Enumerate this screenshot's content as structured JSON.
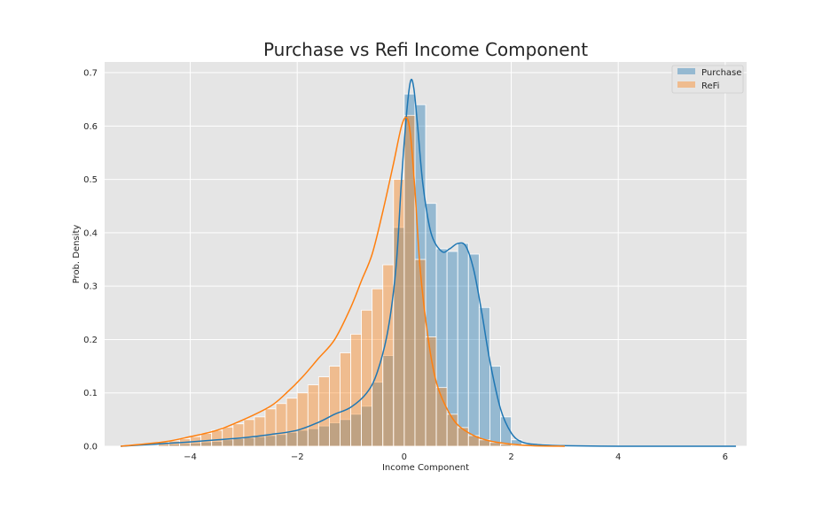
{
  "chart_data": {
    "type": "histogram",
    "title": "Purchase vs Refi Income Component",
    "xlabel": "Income Component",
    "ylabel": "Prob. Density",
    "xlim": [
      -5.6,
      6.4
    ],
    "ylim": [
      0,
      0.72
    ],
    "xticks": [
      -4,
      -2,
      0,
      2,
      4,
      6
    ],
    "xtick_labels": [
      "−4",
      "−2",
      "0",
      "2",
      "4",
      "6"
    ],
    "yticks": [
      0.0,
      0.1,
      0.2,
      0.3,
      0.4,
      0.5,
      0.6,
      0.7
    ],
    "ytick_labels": [
      "0.0",
      "0.1",
      "0.2",
      "0.3",
      "0.4",
      "0.5",
      "0.6",
      "0.7"
    ],
    "grid": true,
    "legend_position": "top-right",
    "series": [
      {
        "name": "Purchase",
        "color": "#1f77b4",
        "hist_bins": [
          [
            -4.5,
            0.003
          ],
          [
            -4.3,
            0.004
          ],
          [
            -4.1,
            0.005
          ],
          [
            -3.9,
            0.006
          ],
          [
            -3.7,
            0.008
          ],
          [
            -3.5,
            0.009
          ],
          [
            -3.3,
            0.012
          ],
          [
            -3.1,
            0.014
          ],
          [
            -2.9,
            0.016
          ],
          [
            -2.7,
            0.018
          ],
          [
            -2.5,
            0.02
          ],
          [
            -2.3,
            0.022
          ],
          [
            -2.1,
            0.026
          ],
          [
            -1.9,
            0.03
          ],
          [
            -1.7,
            0.033
          ],
          [
            -1.5,
            0.038
          ],
          [
            -1.3,
            0.044
          ],
          [
            -1.1,
            0.05
          ],
          [
            -0.9,
            0.06
          ],
          [
            -0.7,
            0.075
          ],
          [
            -0.5,
            0.12
          ],
          [
            -0.3,
            0.17
          ],
          [
            -0.1,
            0.41
          ],
          [
            0.1,
            0.66
          ],
          [
            0.3,
            0.64
          ],
          [
            0.5,
            0.455
          ],
          [
            0.7,
            0.37
          ],
          [
            0.9,
            0.365
          ],
          [
            1.1,
            0.38
          ],
          [
            1.3,
            0.36
          ],
          [
            1.5,
            0.26
          ],
          [
            1.7,
            0.15
          ],
          [
            1.9,
            0.055
          ],
          [
            2.1,
            0.012
          ],
          [
            2.3,
            0.004
          ]
        ],
        "kde_x": [
          -5.3,
          -4.5,
          -4.0,
          -3.5,
          -3.0,
          -2.5,
          -2.0,
          -1.6,
          -1.3,
          -1.0,
          -0.7,
          -0.5,
          -0.3,
          -0.15,
          -0.05,
          0.05,
          0.12,
          0.18,
          0.25,
          0.35,
          0.5,
          0.7,
          0.85,
          1.0,
          1.15,
          1.3,
          1.45,
          1.6,
          1.8,
          2.0,
          2.2,
          2.5,
          3.0,
          4.0,
          5.0,
          6.2
        ],
        "kde_y": [
          0.0,
          0.005,
          0.008,
          0.012,
          0.016,
          0.022,
          0.03,
          0.045,
          0.06,
          0.073,
          0.1,
          0.14,
          0.22,
          0.34,
          0.5,
          0.63,
          0.685,
          0.67,
          0.6,
          0.49,
          0.4,
          0.365,
          0.37,
          0.38,
          0.375,
          0.33,
          0.25,
          0.16,
          0.07,
          0.025,
          0.008,
          0.003,
          0.001,
          0.0,
          0.0,
          0.0
        ]
      },
      {
        "name": "ReFi",
        "color": "#ff7f0e",
        "hist_bins": [
          [
            -4.5,
            0.008
          ],
          [
            -4.3,
            0.01
          ],
          [
            -4.1,
            0.014
          ],
          [
            -3.9,
            0.018
          ],
          [
            -3.7,
            0.024
          ],
          [
            -3.5,
            0.03
          ],
          [
            -3.3,
            0.036
          ],
          [
            -3.1,
            0.042
          ],
          [
            -2.9,
            0.05
          ],
          [
            -2.7,
            0.055
          ],
          [
            -2.5,
            0.07
          ],
          [
            -2.3,
            0.08
          ],
          [
            -2.1,
            0.09
          ],
          [
            -1.9,
            0.1
          ],
          [
            -1.7,
            0.115
          ],
          [
            -1.5,
            0.13
          ],
          [
            -1.3,
            0.15
          ],
          [
            -1.1,
            0.175
          ],
          [
            -0.9,
            0.21
          ],
          [
            -0.7,
            0.255
          ],
          [
            -0.5,
            0.295
          ],
          [
            -0.3,
            0.34
          ],
          [
            -0.1,
            0.5
          ],
          [
            0.1,
            0.62
          ],
          [
            0.3,
            0.35
          ],
          [
            0.5,
            0.205
          ],
          [
            0.7,
            0.11
          ],
          [
            0.9,
            0.06
          ],
          [
            1.1,
            0.035
          ],
          [
            1.3,
            0.02
          ],
          [
            1.5,
            0.012
          ],
          [
            1.7,
            0.007
          ],
          [
            1.9,
            0.004
          ],
          [
            2.1,
            0.002
          ]
        ],
        "kde_x": [
          -5.3,
          -4.5,
          -4.0,
          -3.5,
          -3.0,
          -2.5,
          -2.2,
          -1.9,
          -1.6,
          -1.3,
          -1.0,
          -0.8,
          -0.6,
          -0.4,
          -0.2,
          -0.05,
          0.05,
          0.12,
          0.2,
          0.3,
          0.45,
          0.6,
          0.8,
          1.0,
          1.3,
          1.6,
          2.0,
          2.4,
          3.0
        ],
        "kde_y": [
          0.0,
          0.008,
          0.018,
          0.03,
          0.05,
          0.075,
          0.1,
          0.13,
          0.165,
          0.2,
          0.26,
          0.31,
          0.36,
          0.44,
          0.53,
          0.6,
          0.615,
          0.58,
          0.48,
          0.33,
          0.2,
          0.12,
          0.07,
          0.04,
          0.02,
          0.01,
          0.004,
          0.001,
          0.0
        ]
      }
    ]
  }
}
